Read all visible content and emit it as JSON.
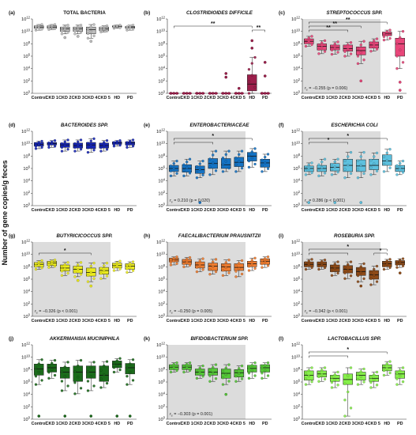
{
  "figure": {
    "ylabel": "Number of gene copies/g feces",
    "group_labels": [
      "Control",
      "CKD 1",
      "CKD 2",
      "CKD 3",
      "CKD 4",
      "CKD 5",
      "HD",
      "PD"
    ],
    "y_tick_labels": [
      "10^12",
      "10^10",
      "10^8",
      "10^6",
      "10^4",
      "10^2",
      "10^0"
    ]
  },
  "chart_data": [
    {
      "type": "box",
      "letter": "(a)",
      "title": "TOTAL BACTERIA",
      "italic": false,
      "color": "#bdbdbd",
      "shade": null,
      "ylim": [
        0,
        12
      ],
      "yscale": "log10",
      "categories": [
        "Control",
        "CKD 1",
        "CKD 2",
        "CKD 3",
        "CKD 4",
        "CKD 5",
        "HD",
        "PD"
      ],
      "boxes": [
        [
          10.2,
          10.5,
          10.7,
          10.9,
          11.1
        ],
        [
          10.3,
          10.5,
          10.7,
          10.9,
          11.1
        ],
        [
          9.6,
          10.0,
          10.4,
          10.7,
          11.0
        ],
        [
          9.6,
          10.0,
          10.4,
          10.7,
          11.0
        ],
        [
          8.9,
          9.6,
          10.3,
          10.7,
          11.1
        ],
        [
          9.9,
          10.1,
          10.4,
          10.7,
          10.9
        ],
        [
          10.5,
          10.7,
          10.8,
          10.9,
          11.0
        ],
        [
          10.2,
          10.5,
          10.7,
          10.8,
          11.0
        ]
      ],
      "outliers": [
        [],
        [],
        [
          9.0
        ],
        [
          9.2
        ],
        [
          8.4
        ],
        [],
        [],
        []
      ],
      "brackets": [],
      "stat_text": ""
    },
    {
      "type": "box",
      "letter": "(b)",
      "title": "CLOSTRIDIOIDES DIFFICILE",
      "italic": true,
      "color": "#9c1f4b",
      "shade": null,
      "ylim": [
        0,
        12
      ],
      "yscale": "log10",
      "categories": [
        "Control",
        "CKD 1",
        "CKD 2",
        "CKD 3",
        "CKD 4",
        "CKD 5",
        "HD",
        "PD"
      ],
      "boxes": [
        [
          0,
          0,
          0,
          0,
          0
        ],
        [
          0,
          0,
          0,
          0,
          0
        ],
        [
          0,
          0,
          0,
          0,
          0
        ],
        [
          0,
          0,
          0,
          0,
          0
        ],
        [
          0,
          0,
          0,
          0,
          0
        ],
        [
          0,
          0,
          0,
          0,
          0
        ],
        [
          0,
          0.4,
          1.5,
          3.0,
          5.8
        ],
        [
          0,
          0,
          0,
          0,
          0
        ]
      ],
      "outliers": [
        [],
        [],
        [],
        [],
        [
          2.6,
          3.2
        ],
        [
          0.8
        ],
        [
          8.5,
          7.3
        ],
        [
          5.0,
          2.8
        ]
      ],
      "brackets": [
        [
          0,
          6,
          "**",
          1
        ],
        [
          6,
          7,
          "**",
          0
        ]
      ],
      "stat_text": ""
    },
    {
      "type": "box",
      "letter": "(c)",
      "title": "STREPTOCOCCUS SPP.",
      "italic": true,
      "color": "#e8467a",
      "shade": [
        0,
        5
      ],
      "ylim": [
        0,
        12
      ],
      "yscale": "log10",
      "categories": [
        "Control",
        "CKD 1",
        "CKD 2",
        "CKD 3",
        "CKD 4",
        "CKD 5",
        "HD",
        "PD"
      ],
      "boxes": [
        [
          7.6,
          8.0,
          8.4,
          8.8,
          9.2
        ],
        [
          6.4,
          7.0,
          7.6,
          8.0,
          8.5
        ],
        [
          6.3,
          7.0,
          7.4,
          7.8,
          8.3
        ],
        [
          6.0,
          6.8,
          7.2,
          7.8,
          8.2
        ],
        [
          4.8,
          6.2,
          6.9,
          7.5,
          8.4
        ],
        [
          6.8,
          7.3,
          7.8,
          8.3,
          8.8
        ],
        [
          8.6,
          9.3,
          9.6,
          9.9,
          10.2
        ],
        [
          4.0,
          6.0,
          8.0,
          8.9,
          10.0
        ]
      ],
      "outliers": [
        [],
        [],
        [],
        [],
        [
          2.0
        ],
        [],
        [],
        [
          0.5,
          1.8
        ]
      ],
      "brackets": [
        [
          0,
          6,
          "**",
          2
        ],
        [
          0,
          4,
          "**",
          1
        ],
        [
          0,
          3,
          "**",
          0
        ]
      ],
      "stat_text": "r_s = −0.255 (p = 0.006)"
    },
    {
      "type": "box",
      "letter": "(d)",
      "title": "BACTEROIDES SPP.",
      "italic": true,
      "color": "#1727b8",
      "shade": null,
      "ylim": [
        0,
        12
      ],
      "yscale": "log10",
      "categories": [
        "Control",
        "CKD 1",
        "CKD 2",
        "CKD 3",
        "CKD 4",
        "CKD 5",
        "HD",
        "PD"
      ],
      "boxes": [
        [
          9.2,
          9.6,
          9.9,
          10.2,
          10.4
        ],
        [
          9.4,
          9.8,
          10.0,
          10.2,
          10.5
        ],
        [
          8.8,
          9.4,
          9.8,
          10.1,
          10.6
        ],
        [
          8.8,
          9.3,
          9.7,
          10.1,
          10.6
        ],
        [
          8.6,
          9.2,
          9.8,
          10.2,
          10.8
        ],
        [
          8.8,
          9.3,
          9.7,
          10.1,
          10.5
        ],
        [
          9.6,
          9.9,
          10.1,
          10.3,
          10.5
        ],
        [
          9.4,
          9.8,
          10.1,
          10.3,
          10.6
        ]
      ],
      "outliers": [
        [],
        [],
        [],
        [],
        [],
        [],
        [],
        []
      ],
      "brackets": [],
      "stat_text": ""
    },
    {
      "type": "box",
      "letter": "(e)",
      "title": "ENTEROBACTERIACEAE",
      "italic": true,
      "color": "#1573c4",
      "shade": [
        0,
        5
      ],
      "ylim": [
        0,
        12
      ],
      "yscale": "log10",
      "categories": [
        "Control",
        "CKD 1",
        "CKD 2",
        "CKD 3",
        "CKD 4",
        "CKD 5",
        "HD",
        "PD"
      ],
      "boxes": [
        [
          4.8,
          5.5,
          6.0,
          6.5,
          7.2
        ],
        [
          4.8,
          5.4,
          6.0,
          6.6,
          7.5
        ],
        [
          4.5,
          5.2,
          5.8,
          6.4,
          7.2
        ],
        [
          5.0,
          6.0,
          6.8,
          7.6,
          8.8
        ],
        [
          5.5,
          6.0,
          6.6,
          7.6,
          8.8
        ],
        [
          5.5,
          6.3,
          7.0,
          7.8,
          8.8
        ],
        [
          6.2,
          7.2,
          8.0,
          8.6,
          9.2
        ],
        [
          5.5,
          6.2,
          6.9,
          7.5,
          8.3
        ]
      ],
      "outliers": [
        [],
        [],
        [
          0.5
        ],
        [],
        [],
        [],
        [],
        []
      ],
      "brackets": [
        [
          0,
          6,
          "*",
          1
        ],
        [
          0,
          3,
          "",
          0
        ]
      ],
      "stat_text": "r_s = 0.210 (p = 0.020)"
    },
    {
      "type": "box",
      "letter": "(f)",
      "title": "ESCHERICHIA COLI",
      "italic": true,
      "color": "#5cc0de",
      "shade": [
        0,
        5
      ],
      "ylim": [
        0,
        12
      ],
      "yscale": "log10",
      "categories": [
        "Control",
        "CKD 1",
        "CKD 2",
        "CKD 3",
        "CKD 4",
        "CKD 5",
        "HD",
        "PD"
      ],
      "boxes": [
        [
          5.0,
          5.5,
          6.0,
          6.4,
          6.9
        ],
        [
          4.8,
          5.5,
          6.0,
          6.5,
          7.5
        ],
        [
          5.0,
          5.6,
          6.2,
          6.8,
          7.5
        ],
        [
          4.5,
          5.5,
          6.5,
          7.5,
          8.6
        ],
        [
          4.5,
          5.5,
          6.4,
          7.4,
          8.6
        ],
        [
          5.0,
          5.8,
          6.5,
          7.5,
          8.5
        ],
        [
          5.5,
          6.5,
          7.2,
          8.2,
          9.1
        ],
        [
          5.0,
          5.5,
          6.0,
          6.5,
          7.2
        ]
      ],
      "outliers": [
        [
          0.5
        ],
        [],
        [
          0.5
        ],
        [],
        [
          0.5
        ],
        [],
        [],
        []
      ],
      "brackets": [
        [
          0,
          6,
          "*",
          1
        ],
        [
          0,
          3,
          "*",
          0
        ]
      ],
      "stat_text": "r_s = 0.286 (p < 0.001)"
    },
    {
      "type": "box",
      "letter": "(g)",
      "title": "BUTYRICICOCCUS SPP.",
      "italic": true,
      "color": "#ecec1e",
      "shade": [
        0,
        5
      ],
      "ylim": [
        0,
        12
      ],
      "yscale": "log10",
      "categories": [
        "Control",
        "CKD 1",
        "CKD 2",
        "CKD 3",
        "CKD 4",
        "CKD 5",
        "HD",
        "PD"
      ],
      "boxes": [
        [
          7.6,
          8.0,
          8.4,
          8.7,
          9.0
        ],
        [
          7.9,
          8.2,
          8.6,
          8.9,
          9.1
        ],
        [
          6.6,
          7.3,
          7.8,
          8.3,
          8.7
        ],
        [
          6.4,
          7.0,
          7.6,
          8.1,
          8.7
        ],
        [
          5.6,
          6.5,
          7.1,
          7.8,
          8.6
        ],
        [
          6.1,
          6.8,
          7.4,
          7.9,
          8.6
        ],
        [
          7.4,
          7.8,
          8.2,
          8.6,
          8.9
        ],
        [
          7.1,
          7.6,
          8.1,
          8.5,
          8.8
        ]
      ],
      "outliers": [
        [],
        [],
        [],
        [
          5.8
        ],
        [
          4.9
        ],
        [],
        [],
        []
      ],
      "brackets": [
        [
          0,
          4,
          "*",
          0
        ]
      ],
      "stat_text": "r_s = −0.326 (p < 0.001)"
    },
    {
      "type": "box",
      "letter": "(h)",
      "title": "FAECALIBACTERIUM PRAUSNITZII",
      "italic": true,
      "color": "#f07d30",
      "shade": [
        0,
        5
      ],
      "ylim": [
        0,
        12
      ],
      "yscale": "log10",
      "categories": [
        "Control",
        "CKD 1",
        "CKD 2",
        "CKD 3",
        "CKD 4",
        "CKD 5",
        "HD",
        "PD"
      ],
      "boxes": [
        [
          8.3,
          8.8,
          9.1,
          9.4,
          9.6
        ],
        [
          8.0,
          8.4,
          8.8,
          9.2,
          9.5
        ],
        [
          7.2,
          7.8,
          8.3,
          8.8,
          9.3
        ],
        [
          6.8,
          7.4,
          8.1,
          8.6,
          9.2
        ],
        [
          6.6,
          7.3,
          8.0,
          8.5,
          9.1
        ],
        [
          6.4,
          7.4,
          7.9,
          8.5,
          9.0
        ],
        [
          7.4,
          8.0,
          8.5,
          8.9,
          9.4
        ],
        [
          7.9,
          8.4,
          8.9,
          9.3,
          9.6
        ]
      ],
      "outliers": [
        [],
        [],
        [],
        [],
        [],
        [],
        [],
        []
      ],
      "brackets": [],
      "stat_text": "r_s = −0.250 (p = 0.005)"
    },
    {
      "type": "box",
      "letter": "(i)",
      "title": "ROSEBURIA SPP.",
      "italic": true,
      "color": "#8e4a17",
      "shade": [
        0,
        5
      ],
      "ylim": [
        0,
        12
      ],
      "yscale": "log10",
      "categories": [
        "Control",
        "CKD 1",
        "CKD 2",
        "CKD 3",
        "CKD 4",
        "CKD 5",
        "HD",
        "PD"
      ],
      "boxes": [
        [
          7.6,
          8.0,
          8.4,
          8.8,
          9.2
        ],
        [
          7.6,
          8.0,
          8.4,
          8.8,
          9.1
        ],
        [
          6.6,
          7.2,
          7.8,
          8.3,
          8.8
        ],
        [
          6.1,
          7.0,
          7.6,
          8.2,
          8.8
        ],
        [
          5.6,
          6.6,
          7.2,
          7.9,
          8.5
        ],
        [
          5.1,
          6.0,
          6.7,
          7.4,
          8.1
        ],
        [
          7.6,
          8.0,
          8.5,
          8.9,
          9.2
        ],
        [
          7.9,
          8.3,
          8.7,
          9.0,
          9.3
        ]
      ],
      "outliers": [
        [],
        [],
        [],
        [],
        [
          4.9
        ],
        [],
        [],
        [
          7.0
        ]
      ],
      "brackets": [
        [
          0,
          6,
          "*",
          1
        ],
        [
          0,
          3,
          "",
          0
        ],
        [
          5,
          6,
          "*",
          0
        ]
      ],
      "stat_text": "r_s = −0.342 (p < 0.001)"
    },
    {
      "type": "box",
      "letter": "(j)",
      "title": "AKKERMANSIA MUCINIPHILA",
      "italic": true,
      "color": "#1b6b1b",
      "shade": null,
      "ylim": [
        0,
        12
      ],
      "yscale": "log10",
      "categories": [
        "Control",
        "CKD 1",
        "CKD 2",
        "CKD 3",
        "CKD 4",
        "CKD 5",
        "HD",
        "PD"
      ],
      "boxes": [
        [
          5.6,
          7.1,
          8.1,
          8.9,
          9.6
        ],
        [
          6.6,
          7.6,
          8.3,
          8.9,
          9.5
        ],
        [
          4.6,
          6.6,
          7.6,
          8.4,
          9.2
        ],
        [
          4.1,
          6.1,
          7.6,
          8.6,
          9.5
        ],
        [
          4.6,
          6.6,
          7.6,
          8.6,
          9.2
        ],
        [
          5.1,
          6.1,
          7.1,
          8.6,
          9.3
        ],
        [
          7.6,
          8.3,
          8.9,
          9.4,
          9.8
        ],
        [
          5.6,
          7.3,
          8.3,
          9.0,
          9.6
        ]
      ],
      "outliers": [
        [
          0.5
        ],
        [],
        [
          0.5
        ],
        [],
        [
          0.5
        ],
        [],
        [
          0.5
        ],
        [
          0.5
        ]
      ],
      "brackets": [],
      "stat_text": ""
    },
    {
      "type": "box",
      "letter": "(k)",
      "title": "BIFIDOBACTERIUM SPP.",
      "italic": true,
      "color": "#55c638",
      "shade": [
        0,
        5
      ],
      "ylim": [
        0,
        12
      ],
      "yscale": "log10",
      "categories": [
        "Control",
        "CKD 1",
        "CKD 2",
        "CKD 3",
        "CKD 4",
        "CKD 5",
        "HD",
        "PD"
      ],
      "boxes": [
        [
          7.6,
          8.0,
          8.4,
          8.8,
          9.1
        ],
        [
          7.6,
          8.0,
          8.4,
          8.8,
          9.1
        ],
        [
          6.6,
          7.1,
          7.6,
          8.1,
          8.6
        ],
        [
          6.1,
          7.1,
          7.6,
          8.2,
          8.8
        ],
        [
          5.6,
          6.6,
          7.4,
          8.1,
          8.8
        ],
        [
          6.1,
          6.8,
          7.5,
          8.0,
          8.6
        ],
        [
          6.6,
          7.6,
          8.2,
          8.7,
          9.1
        ],
        [
          6.6,
          7.6,
          8.3,
          8.8,
          9.1
        ]
      ],
      "outliers": [
        [],
        [],
        [],
        [],
        [
          4.0
        ],
        [],
        [],
        []
      ],
      "brackets": [],
      "stat_text": "r_s = −0.303 (p = 0.001)"
    },
    {
      "type": "box",
      "letter": "(l)",
      "title": "LACTOBACILLUS SPP.",
      "italic": true,
      "color": "#86f04a",
      "shade": null,
      "ylim": [
        0,
        12
      ],
      "yscale": "log10",
      "categories": [
        "Control",
        "CKD 1",
        "CKD 2",
        "CKD 3",
        "CKD 4",
        "CKD 5",
        "HD",
        "PD"
      ],
      "boxes": [
        [
          5.6,
          6.3,
          7.1,
          7.8,
          8.3
        ],
        [
          6.1,
          6.8,
          7.3,
          7.8,
          8.3
        ],
        [
          5.1,
          6.1,
          6.6,
          7.1,
          7.6
        ],
        [
          0.5,
          5.6,
          6.4,
          7.3,
          8.3
        ],
        [
          5.6,
          6.3,
          7.1,
          7.6,
          8.1
        ],
        [
          5.1,
          6.1,
          6.6,
          7.1,
          7.6
        ],
        [
          7.1,
          7.8,
          8.3,
          8.8,
          9.3
        ],
        [
          5.6,
          6.6,
          7.3,
          7.8,
          8.3
        ]
      ],
      "outliers": [
        [],
        [],
        [],
        [],
        [],
        [],
        [],
        []
      ],
      "brackets": [
        [
          0,
          6,
          "*",
          1
        ],
        [
          0,
          3,
          "",
          0
        ]
      ],
      "stat_text": ""
    }
  ]
}
